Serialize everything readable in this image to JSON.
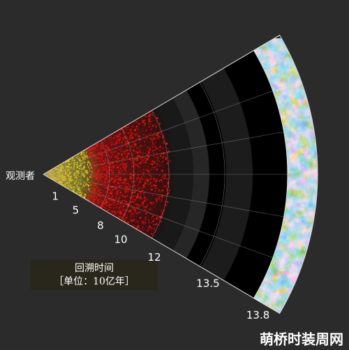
{
  "observer": "观测者",
  "lookback_ticks": [
    "1",
    "5",
    "8",
    "10",
    "12",
    "13.5",
    "13.8"
  ],
  "legend": {
    "title": "回溯时间",
    "unit": "［单位：10亿年］"
  },
  "watermark": "萌桥时装周网"
}
